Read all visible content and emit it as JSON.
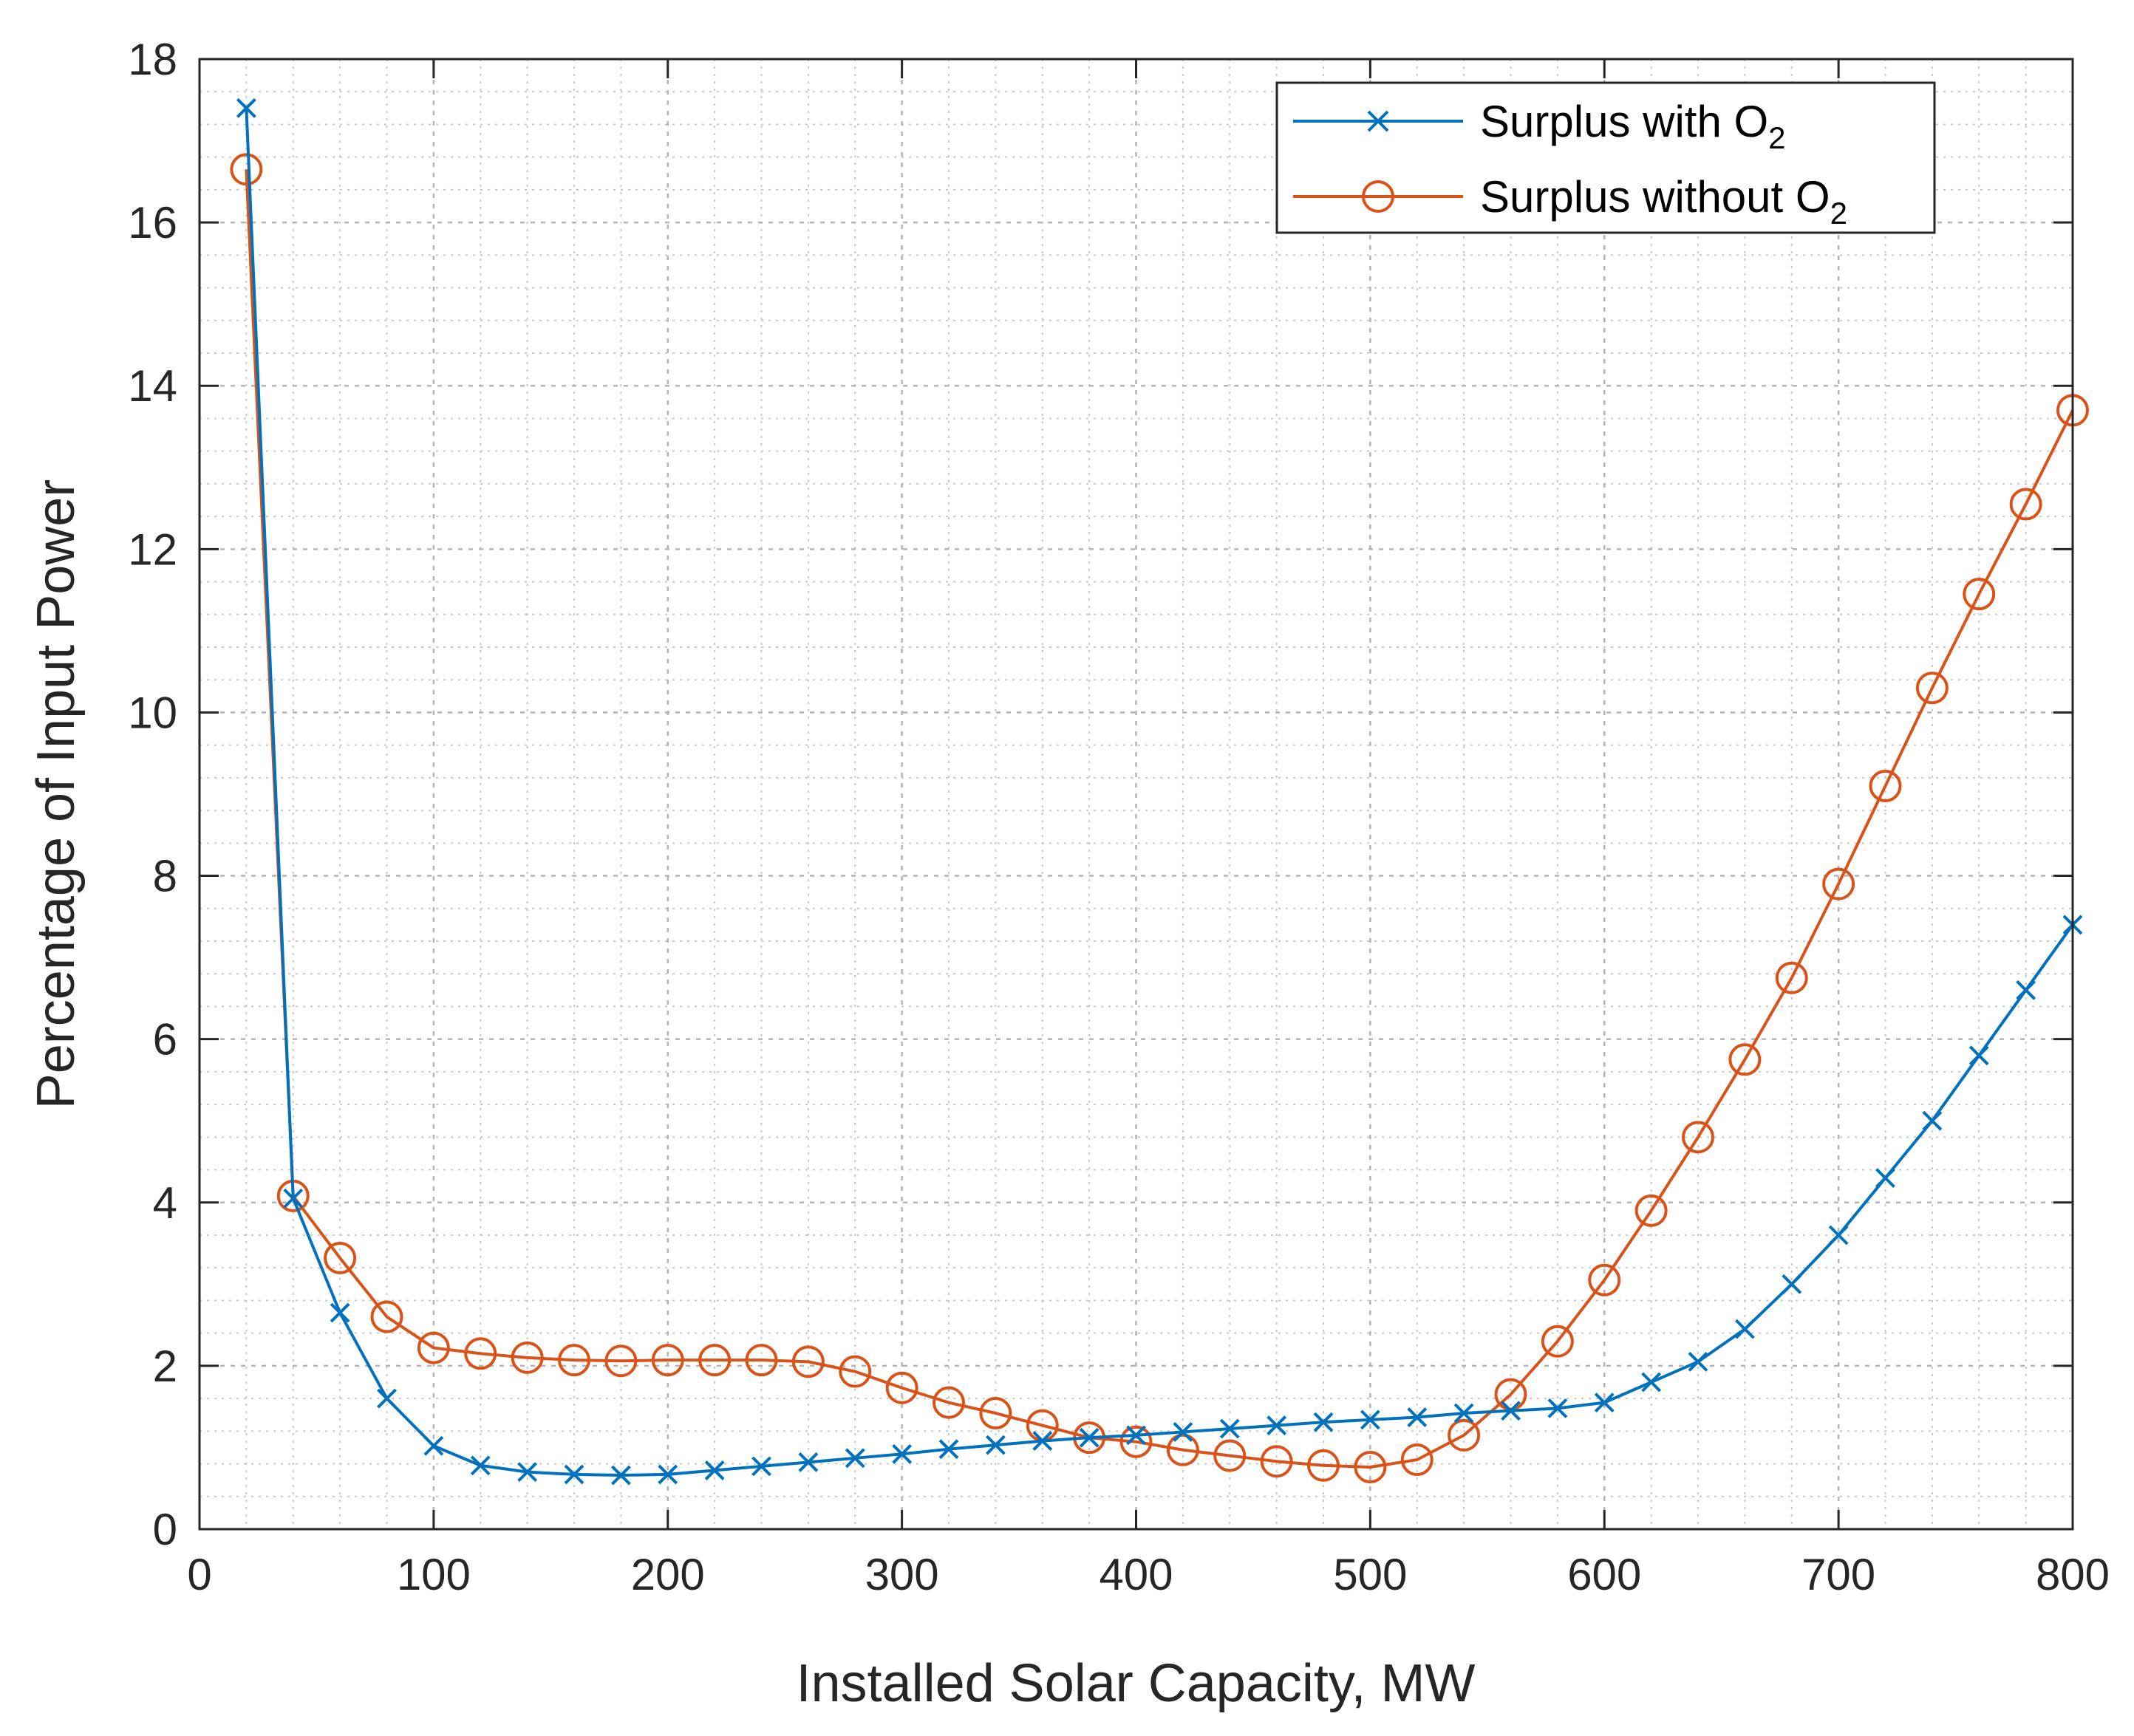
{
  "chart_data": {
    "type": "line",
    "title": "",
    "xlabel": "Installed Solar Capacity, MW",
    "ylabel": "Percentage of Input Power",
    "xlim": [
      0,
      800
    ],
    "ylim": [
      0,
      18
    ],
    "x_ticks": [
      "0",
      "100",
      "200",
      "300",
      "400",
      "500",
      "600",
      "700",
      "800"
    ],
    "y_ticks": [
      "0",
      "2",
      "4",
      "6",
      "8",
      "10",
      "12",
      "14",
      "16",
      "18"
    ],
    "grid": true,
    "minor_grid": true,
    "legend_position": "top-right",
    "x": [
      20,
      40,
      60,
      80,
      100,
      120,
      140,
      160,
      180,
      200,
      220,
      240,
      260,
      280,
      300,
      320,
      340,
      360,
      380,
      400,
      420,
      440,
      460,
      480,
      500,
      520,
      540,
      560,
      580,
      600,
      620,
      640,
      660,
      680,
      700,
      720,
      740,
      760,
      780,
      800
    ],
    "series": [
      {
        "name": "Surplus with O",
        "subscript": "2",
        "color": "#0072BD",
        "marker": "x",
        "values": [
          17.4,
          4.05,
          2.65,
          1.6,
          1.02,
          0.78,
          0.7,
          0.67,
          0.66,
          0.67,
          0.72,
          0.77,
          0.82,
          0.87,
          0.92,
          0.98,
          1.03,
          1.08,
          1.12,
          1.15,
          1.19,
          1.23,
          1.27,
          1.31,
          1.34,
          1.37,
          1.42,
          1.45,
          1.48,
          1.55,
          1.8,
          2.05,
          2.45,
          3.0,
          3.6,
          4.3,
          5.0,
          5.8,
          6.6,
          7.4
        ]
      },
      {
        "name": "Surplus without O",
        "subscript": "2",
        "color": "#D95319",
        "marker": "o",
        "values": [
          16.65,
          4.08,
          3.32,
          2.6,
          2.22,
          2.15,
          2.1,
          2.07,
          2.06,
          2.07,
          2.07,
          2.07,
          2.05,
          1.93,
          1.73,
          1.55,
          1.42,
          1.27,
          1.12,
          1.07,
          0.97,
          0.9,
          0.83,
          0.78,
          0.76,
          0.85,
          1.15,
          1.65,
          2.3,
          3.05,
          3.9,
          4.8,
          5.75,
          6.75,
          7.9,
          9.1,
          10.3,
          11.45,
          12.55,
          13.7
        ]
      }
    ]
  }
}
